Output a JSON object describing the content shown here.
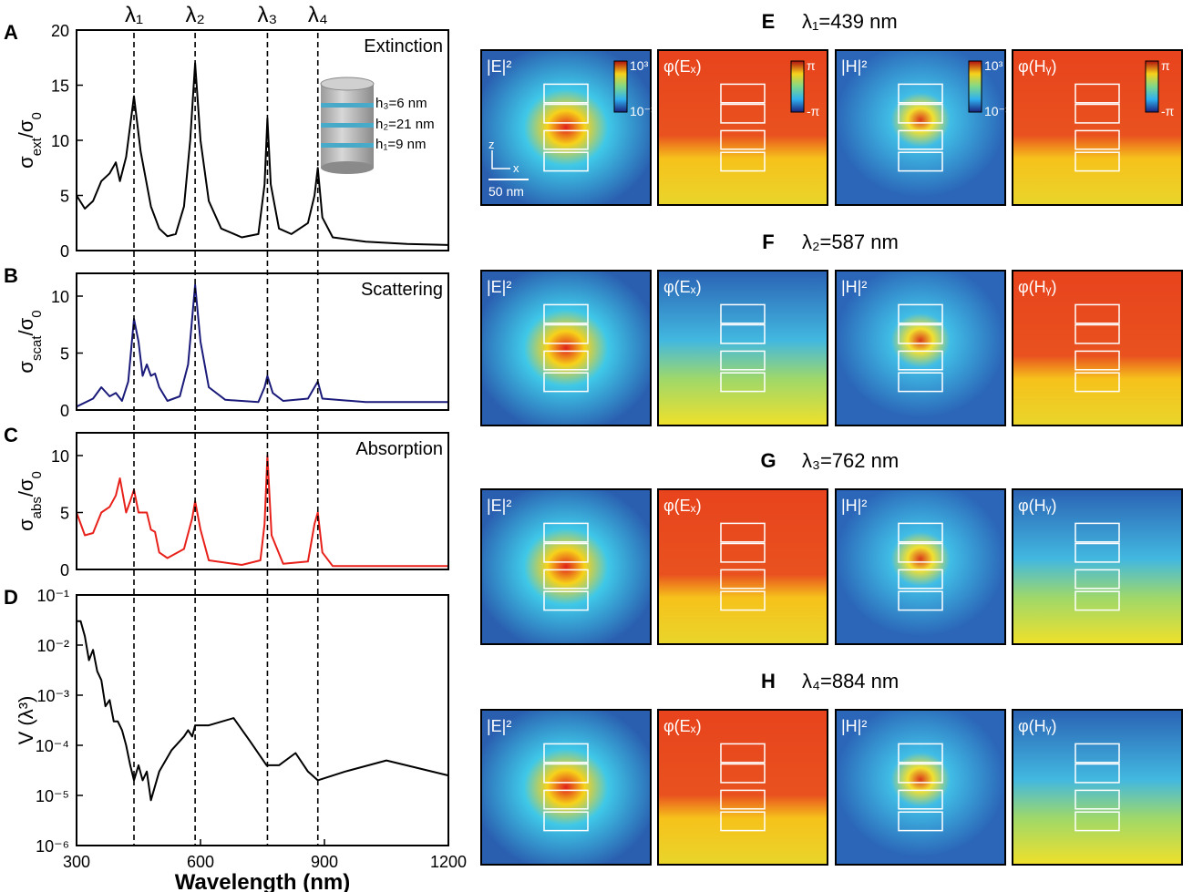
{
  "chart_data": [
    {
      "type": "line",
      "panel": "A",
      "title": "Extinction",
      "y_label": [
        "σ",
        "ext",
        "/σ",
        "0"
      ],
      "color": "#000000",
      "xlim": [
        300,
        1200
      ],
      "ylim": [
        0,
        20
      ],
      "yticks": [
        0,
        5,
        10,
        15,
        20
      ],
      "x": [
        300,
        320,
        340,
        360,
        380,
        395,
        405,
        420,
        439,
        455,
        480,
        500,
        520,
        540,
        560,
        575,
        587,
        600,
        620,
        650,
        700,
        740,
        755,
        762,
        770,
        790,
        820,
        860,
        876,
        884,
        895,
        920,
        1000,
        1100,
        1200
      ],
      "values": [
        5,
        3.8,
        4.5,
        6.3,
        7,
        8,
        6.3,
        8.5,
        14,
        9,
        4,
        2,
        1.3,
        1.5,
        4,
        10,
        17,
        10,
        4.5,
        2,
        1.2,
        1.5,
        6,
        12,
        6,
        2,
        1.5,
        2.5,
        5,
        7.5,
        3,
        1.2,
        0.8,
        0.6,
        0.5
      ]
    },
    {
      "type": "line",
      "panel": "B",
      "title": "Scattering",
      "y_label": [
        "σ",
        "scat",
        "/σ",
        "0"
      ],
      "color": "#1a1a7a",
      "xlim": [
        300,
        1200
      ],
      "ylim": [
        0,
        12
      ],
      "yticks": [
        0,
        5,
        10
      ],
      "x": [
        300,
        340,
        360,
        380,
        395,
        410,
        425,
        439,
        450,
        460,
        470,
        480,
        490,
        500,
        520,
        550,
        570,
        587,
        600,
        620,
        660,
        740,
        755,
        762,
        775,
        800,
        860,
        876,
        884,
        895,
        1000,
        1200
      ],
      "values": [
        0.3,
        1,
        2,
        1.2,
        1.5,
        0.8,
        2.5,
        8,
        6,
        3,
        4,
        3,
        3.2,
        2,
        0.8,
        1.2,
        4,
        11,
        6,
        2,
        0.9,
        0.7,
        2,
        3,
        1.5,
        0.8,
        1,
        2,
        2.5,
        1,
        0.7,
        0.7
      ]
    },
    {
      "type": "line",
      "panel": "C",
      "title": "Absorption",
      "y_label": [
        "σ",
        "abs",
        "/σ",
        "0"
      ],
      "color": "#e8201a",
      "xlim": [
        300,
        1200
      ],
      "ylim": [
        0,
        12
      ],
      "yticks": [
        0,
        5,
        10
      ],
      "x": [
        300,
        320,
        340,
        360,
        380,
        395,
        405,
        420,
        430,
        439,
        450,
        470,
        480,
        490,
        500,
        520,
        560,
        580,
        587,
        600,
        620,
        700,
        745,
        755,
        762,
        772,
        800,
        860,
        876,
        884,
        895,
        920,
        1200
      ],
      "values": [
        5,
        3,
        3.2,
        5,
        5.5,
        6.5,
        8,
        5,
        6,
        7,
        5,
        5,
        3.5,
        3.3,
        1.5,
        1,
        1.8,
        4.5,
        6,
        3.5,
        0.8,
        0.4,
        0.8,
        4,
        10,
        3,
        0.5,
        0.7,
        4,
        5,
        1.5,
        0.3,
        0.3
      ]
    },
    {
      "type": "line",
      "panel": "D",
      "y_label": "V (λ³)",
      "x_label": "Wavelength  (nm)",
      "color": "#000000",
      "log_y": true,
      "xlim": [
        300,
        1200
      ],
      "xticks": [
        300,
        600,
        900,
        1200
      ],
      "ylim": [
        1e-06,
        0.1
      ],
      "yticks": [
        {
          "value": 1e-06,
          "label": "10⁻⁶"
        },
        {
          "value": 1e-05,
          "label": "10⁻⁵"
        },
        {
          "value": 0.0001,
          "label": "10⁻⁴"
        },
        {
          "value": 0.001,
          "label": "10⁻³"
        },
        {
          "value": 0.01,
          "label": "10⁻²"
        },
        {
          "value": 0.1,
          "label": "10⁻¹"
        }
      ],
      "x": [
        300,
        310,
        320,
        330,
        340,
        350,
        360,
        370,
        380,
        390,
        400,
        410,
        420,
        430,
        439,
        450,
        460,
        470,
        480,
        500,
        530,
        560,
        570,
        580,
        587,
        620,
        680,
        720,
        760,
        790,
        830,
        860,
        884,
        950,
        1050,
        1200
      ],
      "values": [
        0.03,
        0.03,
        0.015,
        0.005,
        0.008,
        0.003,
        0.002,
        0.0006,
        0.0008,
        0.0003,
        0.0003,
        0.0002,
        0.0001,
        4e-05,
        2e-05,
        4e-05,
        2e-05,
        3e-05,
        8e-06,
        3e-05,
        8e-05,
        0.00015,
        0.0002,
        0.00015,
        0.00025,
        0.00025,
        0.00035,
        0.00012,
        4e-05,
        4e-05,
        7e-05,
        3e-05,
        2e-05,
        3e-05,
        5e-05,
        2.5e-05
      ]
    }
  ],
  "markers": {
    "labels": [
      "λ₁",
      "λ₂",
      "λ₃",
      "λ₄"
    ],
    "x": [
      439,
      587,
      762,
      884
    ]
  },
  "inset": {
    "labels": [
      "h₃=6 nm",
      "h₂=21 nm",
      "h₁=9 nm"
    ]
  },
  "field_maps": {
    "rows": [
      {
        "letter": "E",
        "title": "λ₁=439 nm",
        "panels": [
          "|E|²",
          "φ(Eₓ)",
          "|H|²",
          "φ(Hᵧ)"
        ]
      },
      {
        "letter": "F",
        "title": "λ₂=587 nm",
        "panels": [
          "|E|²",
          "φ(Eₓ)",
          "|H|²",
          "φ(Hᵧ)"
        ]
      },
      {
        "letter": "G",
        "title": "λ₃=762 nm",
        "panels": [
          "|E|²",
          "φ(Eₓ)",
          "|H|²",
          "φ(Hᵧ)"
        ]
      },
      {
        "letter": "H",
        "title": "λ₄=884 nm",
        "panels": [
          "|E|²",
          "φ(Eₓ)",
          "|H|²",
          "φ(Hᵧ)"
        ]
      }
    ],
    "colorbar_labels": [
      [
        "10³",
        "10⁻¹"
      ],
      [
        "π",
        "-π"
      ],
      [
        "10³",
        "10⁻¹"
      ],
      [
        "π",
        "-π"
      ]
    ],
    "scale_bar": "50 nm",
    "axes": [
      "z",
      "x"
    ]
  }
}
